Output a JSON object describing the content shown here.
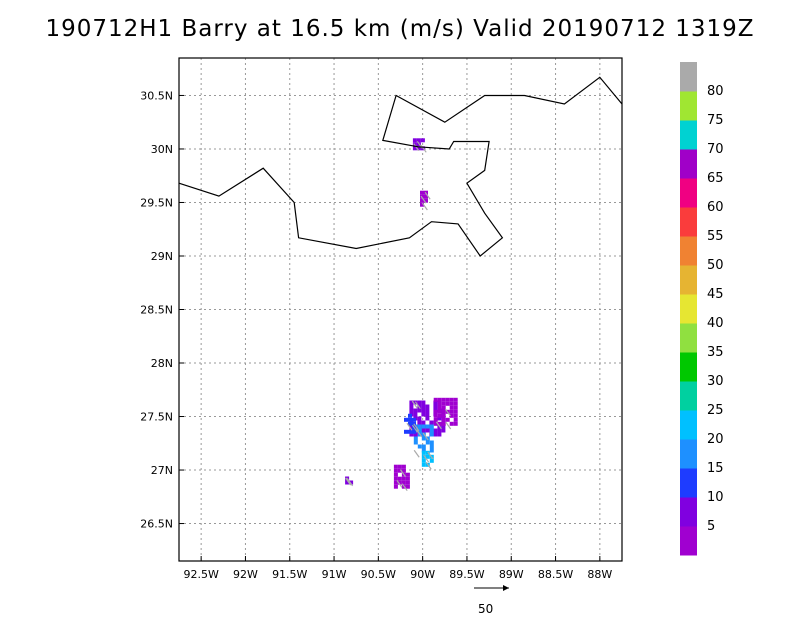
{
  "title": "190712H1 Barry at 16.5 km (m/s) Valid 20190712 1319Z",
  "map": {
    "lon_range": [
      -92.75,
      -87.75
    ],
    "lat_range": [
      26.15,
      30.85
    ],
    "lon_ticks": [
      "92.5W",
      "92W",
      "91.5W",
      "91W",
      "90.5W",
      "90W",
      "89.5W",
      "89W",
      "88.5W",
      "88W"
    ],
    "lat_ticks": [
      "26.5N",
      "27N",
      "27.5N",
      "28N",
      "28.5N",
      "29N",
      "29.5N",
      "30N",
      "30.5N"
    ],
    "grid": "dotted",
    "coastline": [
      [
        -92.75,
        29.68
      ],
      [
        -92.3,
        29.56
      ],
      [
        -91.8,
        29.82
      ],
      [
        -91.45,
        29.5
      ],
      [
        -91.4,
        29.17
      ],
      [
        -90.75,
        29.07
      ],
      [
        -90.15,
        29.17
      ],
      [
        -89.9,
        29.32
      ],
      [
        -89.6,
        29.3
      ],
      [
        -89.35,
        29.0
      ],
      [
        -89.1,
        29.17
      ],
      [
        -89.3,
        29.4
      ],
      [
        -89.5,
        29.68
      ],
      [
        -89.3,
        29.8
      ],
      [
        -89.25,
        30.07
      ],
      [
        -89.65,
        30.07
      ],
      [
        -89.7,
        30.0
      ],
      [
        -90.05,
        30.02
      ],
      [
        -90.45,
        30.08
      ],
      [
        -90.3,
        30.5
      ],
      [
        -89.75,
        30.25
      ],
      [
        -89.3,
        30.5
      ],
      [
        -88.85,
        30.5
      ],
      [
        -88.4,
        30.42
      ],
      [
        -88.0,
        30.67
      ],
      [
        -87.75,
        30.42
      ]
    ]
  },
  "colorbar": {
    "labels": [
      "5",
      "10",
      "15",
      "20",
      "25",
      "30",
      "35",
      "40",
      "45",
      "50",
      "55",
      "60",
      "65",
      "70",
      "75",
      "80"
    ],
    "colors": [
      "#a000d0",
      "#8000e0",
      "#1e3cff",
      "#1e90ff",
      "#00c0ff",
      "#00d0a0",
      "#00c800",
      "#90e040",
      "#e6e632",
      "#e6b432",
      "#f08232",
      "#fa3c3c",
      "#f00082",
      "#a000c8",
      "#00d2d2",
      "#a0e632",
      "#aaaaaa"
    ]
  },
  "reference_vector": {
    "label": "50"
  },
  "storm_echoes": [
    {
      "lon": -90.05,
      "lat": 30.05,
      "w": 0.12,
      "h": 0.1,
      "color": "#8000e0"
    },
    {
      "lon": -90.0,
      "lat": 29.55,
      "w": 0.06,
      "h": 0.12,
      "color": "#a000d0"
    },
    {
      "lon": -89.95,
      "lat": 27.5,
      "w": 0.4,
      "h": 0.3,
      "color": "#8000e0"
    },
    {
      "lon": -89.75,
      "lat": 27.55,
      "w": 0.25,
      "h": 0.25,
      "color": "#a000d0"
    },
    {
      "lon": -90.0,
      "lat": 27.3,
      "w": 0.2,
      "h": 0.25,
      "color": "#1e90ff"
    },
    {
      "lon": -89.95,
      "lat": 27.12,
      "w": 0.12,
      "h": 0.12,
      "color": "#00c0ff"
    },
    {
      "lon": -90.25,
      "lat": 26.95,
      "w": 0.15,
      "h": 0.2,
      "color": "#a000d0"
    },
    {
      "lon": -90.15,
      "lat": 27.45,
      "w": 0.12,
      "h": 0.15,
      "color": "#1e3cff"
    },
    {
      "lon": -90.85,
      "lat": 26.92,
      "w": 0.05,
      "h": 0.04,
      "color": "#8000e0"
    }
  ]
}
